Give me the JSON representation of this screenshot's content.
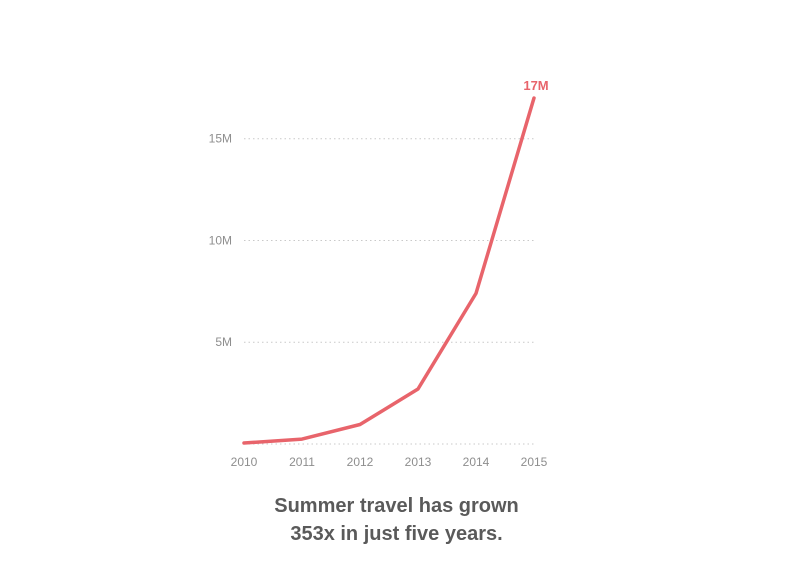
{
  "chart_data": {
    "type": "line",
    "x": [
      "2010",
      "2011",
      "2012",
      "2013",
      "2014",
      "2015"
    ],
    "series": [
      {
        "values": [
          48000,
          240000,
          960000,
          2700000,
          7400000,
          17000000
        ]
      }
    ],
    "yticks": [
      {
        "value": 5000000,
        "label": "5M"
      },
      {
        "value": 10000000,
        "label": "10M"
      },
      {
        "value": 15000000,
        "label": "15M"
      }
    ],
    "ylim": [
      0,
      17000000
    ],
    "grid": "horizontal dotted",
    "end_label": "17M",
    "caption_lines": [
      "Summer travel has grown",
      "353x in just five years."
    ],
    "colors": {
      "line": "#e8646b",
      "end_label": "#e8646b",
      "tick_text": "#8e8e8e",
      "grid": "#c9c9c9",
      "caption": "#5a5a5a"
    }
  }
}
